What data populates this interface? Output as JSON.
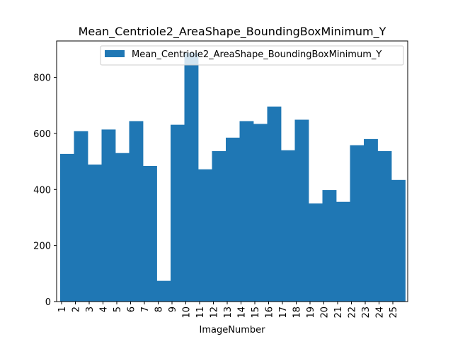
{
  "chart_data": {
    "type": "bar",
    "title": "Mean_Centriole2_AreaShape_BoundingBoxMinimum_Y",
    "xlabel": "ImageNumber",
    "ylabel": "",
    "categories": [
      "1",
      "2",
      "3",
      "4",
      "5",
      "6",
      "7",
      "8",
      "9",
      "10",
      "11",
      "12",
      "13",
      "14",
      "15",
      "16",
      "17",
      "18",
      "19",
      "20",
      "21",
      "22",
      "23",
      "24",
      "25"
    ],
    "series": [
      {
        "name": "Mean_Centriole2_AreaShape_BoundingBoxMinimum_Y",
        "color": "#1f77b4",
        "values": [
          527,
          608,
          489,
          614,
          530,
          644,
          484,
          74,
          631,
          888,
          472,
          537,
          585,
          644,
          634,
          696,
          540,
          649,
          350,
          398,
          356,
          558,
          580,
          537,
          434
        ]
      }
    ],
    "ylim": [
      0,
      930
    ],
    "yticks": [
      0,
      200,
      400,
      600,
      800
    ],
    "ytick_labels": [
      "0",
      "200",
      "400",
      "600",
      "800"
    ],
    "grid": false,
    "legend_position": "top-right"
  }
}
